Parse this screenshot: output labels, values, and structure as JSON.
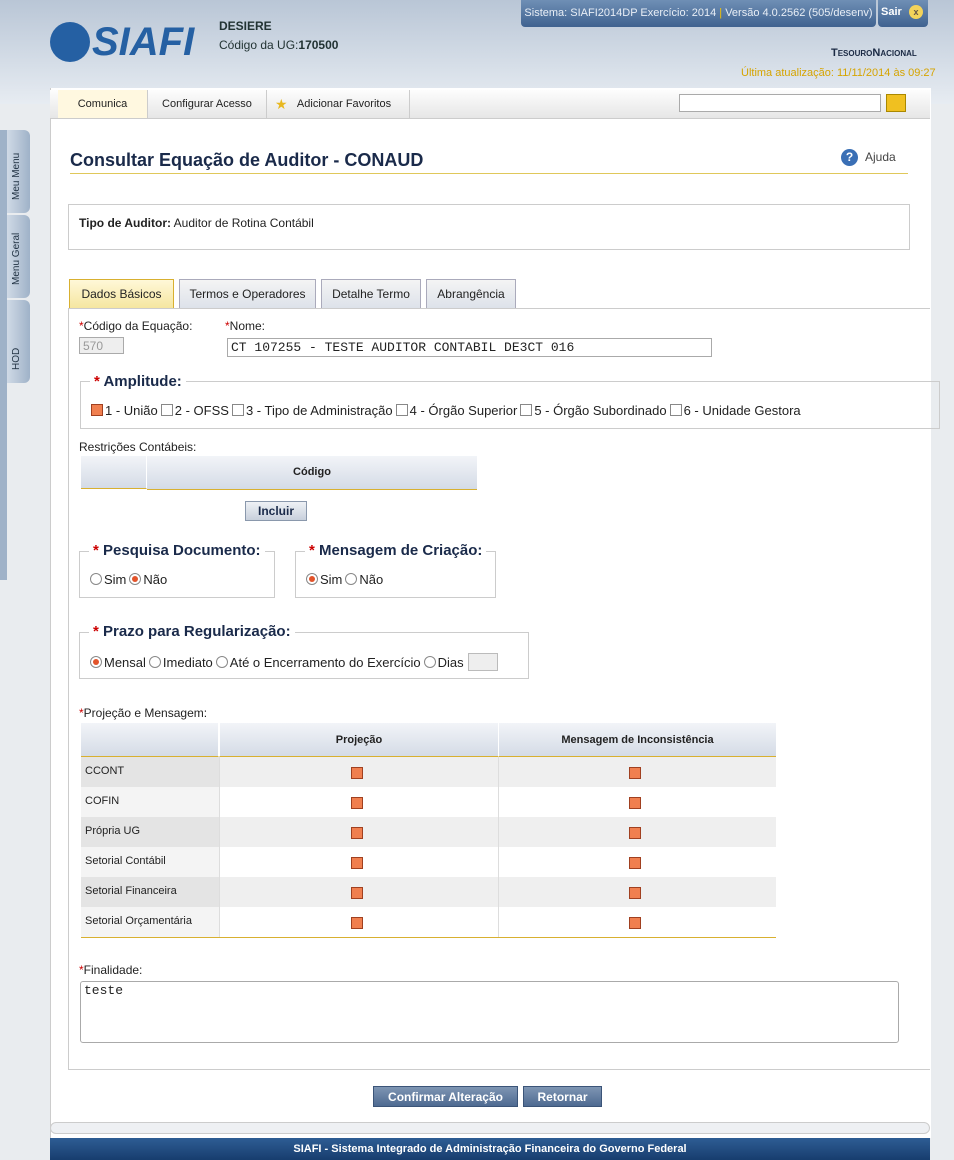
{
  "header": {
    "logo": "SIAFI",
    "user": "DESIERE",
    "ug_label": "Código da UG:",
    "ug": "170500",
    "system": "Sistema: SIAFI2014DP Exercício: 2014",
    "version": "Versão 4.0.2562 (505/desenv)",
    "logout": "Sair",
    "logout_icon": "x",
    "brand": "TesouroNacional",
    "update": "Última atualização: 11/11/2014 às 09:27"
  },
  "menu": [
    "Comunica",
    "Configurar Acesso",
    "Adicionar Favoritos"
  ],
  "side_tabs": [
    "Meu Menu",
    "Menu Geral",
    "HOD"
  ],
  "page": {
    "title": "Consultar Equação de Auditor - CONAUD",
    "help": "Ajuda"
  },
  "auditor": {
    "label": "Tipo de Auditor:",
    "value": "Auditor de Rotina Contábil"
  },
  "tabs": [
    "Dados Básicos",
    "Termos e Operadores",
    "Detalhe Termo",
    "Abrangência"
  ],
  "form": {
    "required_mark": "*",
    "code_label": "Código da Equação:",
    "code": "570",
    "name_label": "Nome:",
    "name": "CT 107255 - TESTE AUDITOR CONTABIL DE3CT 016",
    "amplitude": {
      "legend": "Amplitude:",
      "options": [
        {
          "label": "1 - União",
          "checked": true
        },
        {
          "label": "2 - OFSS",
          "checked": false
        },
        {
          "label": "3 - Tipo de Administração",
          "checked": false
        },
        {
          "label": "4 - Órgão Superior",
          "checked": false
        },
        {
          "label": "5 - Órgão Subordinado",
          "checked": false
        },
        {
          "label": "6 - Unidade Gestora",
          "checked": false
        }
      ]
    },
    "restricoes": {
      "label": "Restrições Contábeis:",
      "header": "Código",
      "button": "Incluir"
    },
    "pesquisa": {
      "legend": "Pesquisa Documento:",
      "options": [
        {
          "label": "Sim",
          "checked": false
        },
        {
          "label": "Não",
          "checked": true
        }
      ]
    },
    "mensagem": {
      "legend": "Mensagem de Criação:",
      "options": [
        {
          "label": "Sim",
          "checked": true
        },
        {
          "label": "Não",
          "checked": false
        }
      ]
    },
    "prazo": {
      "legend": "Prazo para Regularização:",
      "options": [
        {
          "label": "Mensal",
          "checked": true
        },
        {
          "label": "Imediato",
          "checked": false
        },
        {
          "label": "Até o Encerramento do Exercício",
          "checked": false
        },
        {
          "label": "Dias",
          "checked": false
        }
      ]
    },
    "projecao": {
      "label": "Projeção e Mensagem:",
      "columns": [
        "Projeção",
        "Mensagem de Inconsistência"
      ],
      "rows": [
        {
          "name": "CCONT",
          "projecao": true,
          "mensagem": true
        },
        {
          "name": "COFIN",
          "projecao": true,
          "mensagem": true
        },
        {
          "name": "Própria UG",
          "projecao": true,
          "mensagem": true
        },
        {
          "name": "Setorial Contábil",
          "projecao": true,
          "mensagem": true
        },
        {
          "name": "Setorial Financeira",
          "projecao": true,
          "mensagem": true
        },
        {
          "name": "Setorial Orçamentária",
          "projecao": true,
          "mensagem": true
        }
      ]
    },
    "finalidade": {
      "label": "Finalidade:",
      "value": "teste"
    },
    "buttons": [
      "Confirmar Alteração",
      "Retornar"
    ]
  },
  "footer": "SIAFI - Sistema Integrado de Administração Financeira do Governo Federal"
}
